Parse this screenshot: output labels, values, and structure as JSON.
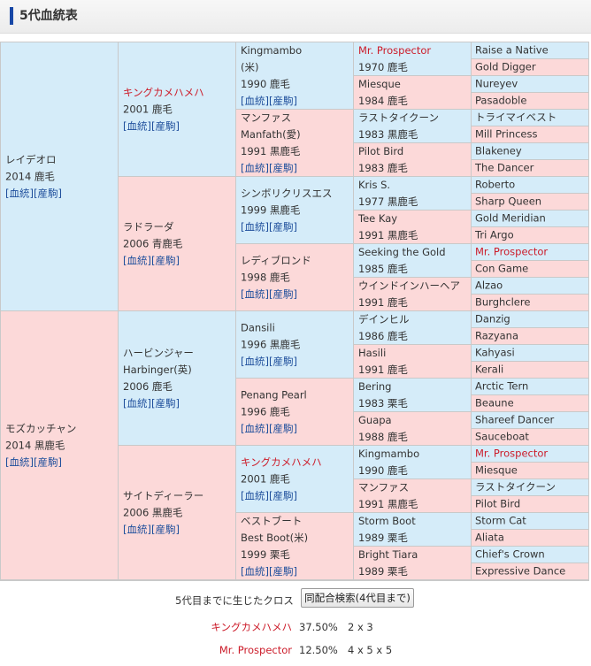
{
  "header": {
    "title": "5代血統表"
  },
  "links": {
    "blood": "血統",
    "foal": "産駒"
  },
  "pedigree": [
    {
      "g": 1,
      "lines": [
        "レイデオロ",
        "2014 鹿毛"
      ],
      "links": true,
      "sex": "m",
      "red": false
    },
    {
      "g": 1,
      "lines": [
        "モズカッチャン",
        "2014 黒鹿毛"
      ],
      "links": true,
      "sex": "f",
      "red": false
    },
    {
      "g": 2,
      "lines": [
        "キングカメハメハ",
        "2001 鹿毛"
      ],
      "links": true,
      "sex": "m",
      "red": true
    },
    {
      "g": 2,
      "lines": [
        "ラドラーダ",
        "2006 青鹿毛"
      ],
      "links": true,
      "sex": "f",
      "red": false
    },
    {
      "g": 2,
      "lines": [
        "ハービンジャー",
        "Harbinger(英)",
        "2006 鹿毛"
      ],
      "links": true,
      "sex": "m",
      "red": false
    },
    {
      "g": 2,
      "lines": [
        "サイトディーラー",
        "2006 黒鹿毛"
      ],
      "links": true,
      "sex": "f",
      "red": false
    },
    {
      "g": 3,
      "lines": [
        "Kingmambo",
        "(米)",
        "1990 鹿毛"
      ],
      "links": true,
      "sex": "m",
      "red": false
    },
    {
      "g": 3,
      "lines": [
        "マンファス",
        "Manfath(愛)",
        "1991 黒鹿毛"
      ],
      "links": true,
      "sex": "f",
      "red": false
    },
    {
      "g": 3,
      "lines": [
        "シンボリクリスエス",
        "1999 黒鹿毛"
      ],
      "links": true,
      "sex": "m",
      "red": false
    },
    {
      "g": 3,
      "lines": [
        "レディブロンド",
        "1998 鹿毛"
      ],
      "links": true,
      "sex": "f",
      "red": false
    },
    {
      "g": 3,
      "lines": [
        "Dansili",
        "1996 黒鹿毛"
      ],
      "links": true,
      "sex": "m",
      "red": false
    },
    {
      "g": 3,
      "lines": [
        "Penang Pearl",
        "1996 鹿毛"
      ],
      "links": true,
      "sex": "f",
      "red": false
    },
    {
      "g": 3,
      "lines": [
        "キングカメハメハ",
        "2001 鹿毛"
      ],
      "links": true,
      "sex": "m",
      "red": true
    },
    {
      "g": 3,
      "lines": [
        "ベストブート",
        "Best Boot(米)",
        "1999 栗毛"
      ],
      "links": true,
      "sex": "f",
      "red": false
    },
    {
      "g": 4,
      "lines": [
        "Mr. Prospector",
        "1970 鹿毛"
      ],
      "links": false,
      "sex": "m",
      "red": true
    },
    {
      "g": 4,
      "lines": [
        "Miesque",
        "1984 鹿毛"
      ],
      "links": false,
      "sex": "f",
      "red": false
    },
    {
      "g": 4,
      "lines": [
        "ラストタイクーン",
        "1983 黒鹿毛"
      ],
      "links": false,
      "sex": "m",
      "red": false
    },
    {
      "g": 4,
      "lines": [
        "Pilot Bird",
        "1983 鹿毛"
      ],
      "links": false,
      "sex": "f",
      "red": false
    },
    {
      "g": 4,
      "lines": [
        "Kris S.",
        "1977 黒鹿毛"
      ],
      "links": false,
      "sex": "m",
      "red": false
    },
    {
      "g": 4,
      "lines": [
        "Tee Kay",
        "1991 黒鹿毛"
      ],
      "links": false,
      "sex": "f",
      "red": false
    },
    {
      "g": 4,
      "lines": [
        "Seeking the Gold",
        "1985 鹿毛"
      ],
      "links": false,
      "sex": "m",
      "red": false
    },
    {
      "g": 4,
      "lines": [
        "ウインドインハーヘア",
        "1991 鹿毛"
      ],
      "links": false,
      "sex": "f",
      "red": false
    },
    {
      "g": 4,
      "lines": [
        "デインヒル",
        "1986 鹿毛"
      ],
      "links": false,
      "sex": "m",
      "red": false
    },
    {
      "g": 4,
      "lines": [
        "Hasili",
        "1991 鹿毛"
      ],
      "links": false,
      "sex": "f",
      "red": false
    },
    {
      "g": 4,
      "lines": [
        "Bering",
        "1983 栗毛"
      ],
      "links": false,
      "sex": "m",
      "red": false
    },
    {
      "g": 4,
      "lines": [
        "Guapa",
        "1988 鹿毛"
      ],
      "links": false,
      "sex": "f",
      "red": false
    },
    {
      "g": 4,
      "lines": [
        "Kingmambo",
        "1990 鹿毛"
      ],
      "links": false,
      "sex": "m",
      "red": false
    },
    {
      "g": 4,
      "lines": [
        "マンファス",
        "1991 黒鹿毛"
      ],
      "links": false,
      "sex": "f",
      "red": false
    },
    {
      "g": 4,
      "lines": [
        "Storm Boot",
        "1989 栗毛"
      ],
      "links": false,
      "sex": "m",
      "red": false
    },
    {
      "g": 4,
      "lines": [
        "Bright Tiara",
        "1989 栗毛"
      ],
      "links": false,
      "sex": "f",
      "red": false
    },
    {
      "g": 5,
      "lines": [
        "Raise a Native"
      ],
      "links": false,
      "sex": "m",
      "red": false
    },
    {
      "g": 5,
      "lines": [
        "Gold Digger"
      ],
      "links": false,
      "sex": "f",
      "red": false
    },
    {
      "g": 5,
      "lines": [
        "Nureyev"
      ],
      "links": false,
      "sex": "m",
      "red": false
    },
    {
      "g": 5,
      "lines": [
        "Pasadoble"
      ],
      "links": false,
      "sex": "f",
      "red": false
    },
    {
      "g": 5,
      "lines": [
        "トライマイベスト"
      ],
      "links": false,
      "sex": "m",
      "red": false
    },
    {
      "g": 5,
      "lines": [
        "Mill Princess"
      ],
      "links": false,
      "sex": "f",
      "red": false
    },
    {
      "g": 5,
      "lines": [
        "Blakeney"
      ],
      "links": false,
      "sex": "m",
      "red": false
    },
    {
      "g": 5,
      "lines": [
        "The Dancer"
      ],
      "links": false,
      "sex": "f",
      "red": false
    },
    {
      "g": 5,
      "lines": [
        "Roberto"
      ],
      "links": false,
      "sex": "m",
      "red": false
    },
    {
      "g": 5,
      "lines": [
        "Sharp Queen"
      ],
      "links": false,
      "sex": "f",
      "red": false
    },
    {
      "g": 5,
      "lines": [
        "Gold Meridian"
      ],
      "links": false,
      "sex": "m",
      "red": false
    },
    {
      "g": 5,
      "lines": [
        "Tri Argo"
      ],
      "links": false,
      "sex": "f",
      "red": false
    },
    {
      "g": 5,
      "lines": [
        "Mr. Prospector"
      ],
      "links": false,
      "sex": "m",
      "red": true
    },
    {
      "g": 5,
      "lines": [
        "Con Game"
      ],
      "links": false,
      "sex": "f",
      "red": false
    },
    {
      "g": 5,
      "lines": [
        "Alzao"
      ],
      "links": false,
      "sex": "m",
      "red": false
    },
    {
      "g": 5,
      "lines": [
        "Burghclere"
      ],
      "links": false,
      "sex": "f",
      "red": false
    },
    {
      "g": 5,
      "lines": [
        "Danzig"
      ],
      "links": false,
      "sex": "m",
      "red": false
    },
    {
      "g": 5,
      "lines": [
        "Razyana"
      ],
      "links": false,
      "sex": "f",
      "red": false
    },
    {
      "g": 5,
      "lines": [
        "Kahyasi"
      ],
      "links": false,
      "sex": "m",
      "red": false
    },
    {
      "g": 5,
      "lines": [
        "Kerali"
      ],
      "links": false,
      "sex": "f",
      "red": false
    },
    {
      "g": 5,
      "lines": [
        "Arctic Tern"
      ],
      "links": false,
      "sex": "m",
      "red": false
    },
    {
      "g": 5,
      "lines": [
        "Beaune"
      ],
      "links": false,
      "sex": "f",
      "red": false
    },
    {
      "g": 5,
      "lines": [
        "Shareef Dancer"
      ],
      "links": false,
      "sex": "m",
      "red": false
    },
    {
      "g": 5,
      "lines": [
        "Sauceboat"
      ],
      "links": false,
      "sex": "f",
      "red": false
    },
    {
      "g": 5,
      "lines": [
        "Mr. Prospector"
      ],
      "links": false,
      "sex": "m",
      "red": true
    },
    {
      "g": 5,
      "lines": [
        "Miesque"
      ],
      "links": false,
      "sex": "f",
      "red": false
    },
    {
      "g": 5,
      "lines": [
        "ラストタイクーン"
      ],
      "links": false,
      "sex": "m",
      "red": false
    },
    {
      "g": 5,
      "lines": [
        "Pilot Bird"
      ],
      "links": false,
      "sex": "f",
      "red": false
    },
    {
      "g": 5,
      "lines": [
        "Storm Cat"
      ],
      "links": false,
      "sex": "m",
      "red": false
    },
    {
      "g": 5,
      "lines": [
        "Aliata"
      ],
      "links": false,
      "sex": "f",
      "red": false
    },
    {
      "g": 5,
      "lines": [
        "Chief's Crown"
      ],
      "links": false,
      "sex": "m",
      "red": false
    },
    {
      "g": 5,
      "lines": [
        "Expressive Dance"
      ],
      "links": false,
      "sex": "f",
      "red": false
    }
  ],
  "crosses": {
    "label": "5代目までに生じたクロス",
    "button": "同配合検索(4代目まで)",
    "items": [
      {
        "name": "キングカメハメハ",
        "percent": "37.50%",
        "pattern": "2 x 3"
      },
      {
        "name": "Mr. Prospector",
        "percent": "12.50%",
        "pattern": "4 x 5 x 5"
      }
    ]
  },
  "colors": {
    "male_bg": "#d5ecf9",
    "female_bg": "#fcd9d9",
    "accent_red": "#cc1c2a",
    "link_blue": "#1f4f9c",
    "header_bar": "#1747a6"
  }
}
